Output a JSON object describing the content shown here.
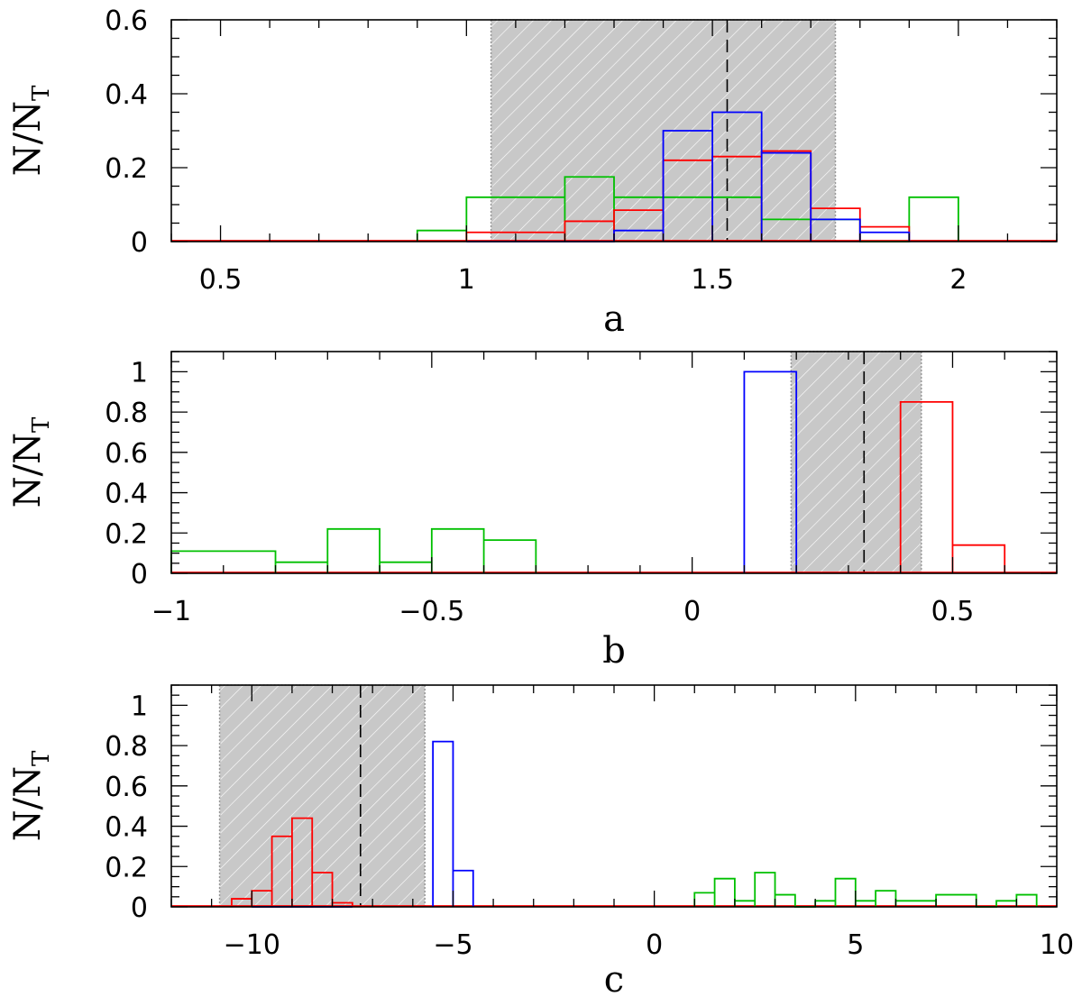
{
  "colors": {
    "blue": "#0000ff",
    "red": "#ff0000",
    "green": "#00c000",
    "band": "#c8c8c8"
  },
  "chart_data": [
    {
      "type": "histogram",
      "panel": "a",
      "xlabel": "a",
      "ylabel": "N/N",
      "ylabel_sub": "T",
      "xlim": [
        0.4,
        2.2
      ],
      "ylim": [
        0,
        0.6
      ],
      "xticks": [
        0.5,
        1,
        1.5,
        2
      ],
      "xtick_labels": [
        "0.5",
        "1",
        "1.5",
        "2"
      ],
      "yticks": [
        0,
        0.2,
        0.4,
        0.6
      ],
      "ytick_labels": [
        "0",
        "0.2",
        "0.4",
        "0.6"
      ],
      "x_minor_step": 0.1,
      "y_minor_step": 0.05,
      "shaded_range": [
        1.05,
        1.75
      ],
      "median_line": 1.53,
      "series": [
        {
          "color": "green",
          "bins": [
            [
              0.9,
              1.0,
              0.03
            ],
            [
              1.0,
              1.2,
              0.12
            ],
            [
              1.2,
              1.3,
              0.175
            ],
            [
              1.3,
              1.4,
              0.12
            ],
            [
              1.4,
              1.6,
              0.12
            ],
            [
              1.6,
              1.8,
              0.06
            ],
            [
              1.8,
              1.9,
              0.0
            ],
            [
              1.9,
              2.0,
              0.12
            ]
          ]
        },
        {
          "color": "red",
          "bins": [
            [
              1.0,
              1.2,
              0.025
            ],
            [
              1.2,
              1.3,
              0.055
            ],
            [
              1.3,
              1.4,
              0.085
            ],
            [
              1.4,
              1.5,
              0.22
            ],
            [
              1.5,
              1.6,
              0.23
            ],
            [
              1.6,
              1.7,
              0.245
            ],
            [
              1.7,
              1.8,
              0.09
            ],
            [
              1.8,
              1.9,
              0.04
            ]
          ]
        },
        {
          "color": "blue",
          "bins": [
            [
              1.0,
              1.3,
              0.0
            ],
            [
              1.3,
              1.4,
              0.03
            ],
            [
              1.4,
              1.5,
              0.3
            ],
            [
              1.5,
              1.6,
              0.35
            ],
            [
              1.6,
              1.7,
              0.24
            ],
            [
              1.7,
              1.8,
              0.06
            ],
            [
              1.8,
              1.9,
              0.025
            ]
          ]
        }
      ]
    },
    {
      "type": "histogram",
      "panel": "b",
      "xlabel": "b",
      "ylabel": "N/N",
      "ylabel_sub": "T",
      "xlim": [
        -1.0,
        0.7
      ],
      "ylim": [
        0,
        1.1
      ],
      "xticks": [
        -1,
        -0.5,
        0,
        0.5
      ],
      "xtick_labels": [
        "−1",
        "−0.5",
        "0",
        "0.5"
      ],
      "yticks": [
        0,
        0.2,
        0.4,
        0.6,
        0.8,
        1.0
      ],
      "ytick_labels": [
        "0",
        "0.2",
        "0.4",
        "0.6",
        "0.8",
        "1"
      ],
      "x_minor_step": 0.1,
      "y_minor_step": 0.05,
      "shaded_range": [
        0.19,
        0.44
      ],
      "median_line": 0.33,
      "series": [
        {
          "color": "green",
          "bins": [
            [
              -1.0,
              -0.8,
              0.11
            ],
            [
              -0.8,
              -0.7,
              0.055
            ],
            [
              -0.7,
              -0.6,
              0.22
            ],
            [
              -0.6,
              -0.5,
              0.055
            ],
            [
              -0.5,
              -0.4,
              0.22
            ],
            [
              -0.4,
              -0.3,
              0.165
            ]
          ]
        },
        {
          "color": "blue",
          "bins": [
            [
              0.1,
              0.2,
              1.0
            ]
          ]
        },
        {
          "color": "red",
          "bins": [
            [
              0.4,
              0.5,
              0.85
            ],
            [
              0.5,
              0.6,
              0.14
            ]
          ]
        }
      ]
    },
    {
      "type": "histogram",
      "panel": "c",
      "xlabel": "c",
      "ylabel": "N/N",
      "ylabel_sub": "T",
      "xlim": [
        -12.0,
        10.0
      ],
      "ylim": [
        0,
        1.1
      ],
      "xticks": [
        -10,
        -5,
        0,
        5,
        10
      ],
      "xtick_labels": [
        "−10",
        "−5",
        "0",
        "5",
        "10"
      ],
      "yticks": [
        0,
        0.2,
        0.4,
        0.6,
        0.8,
        1.0
      ],
      "ytick_labels": [
        "0",
        "0.2",
        "0.4",
        "0.6",
        "0.8",
        "1"
      ],
      "x_minor_step": 1,
      "y_minor_step": 0.05,
      "shaded_range": [
        -10.8,
        -5.7
      ],
      "median_line": -7.3,
      "series": [
        {
          "color": "red",
          "bins": [
            [
              -10.5,
              -10.0,
              0.04
            ],
            [
              -10.0,
              -9.5,
              0.08
            ],
            [
              -9.5,
              -9.0,
              0.35
            ],
            [
              -9.0,
              -8.5,
              0.44
            ],
            [
              -8.5,
              -8.0,
              0.17
            ],
            [
              -8.0,
              -7.5,
              0.02
            ]
          ]
        },
        {
          "color": "blue",
          "bins": [
            [
              -10.0,
              -7.5,
              0.0
            ],
            [
              -5.5,
              -5.0,
              0.82
            ],
            [
              -5.0,
              -4.5,
              0.18
            ]
          ]
        },
        {
          "color": "green",
          "bins": [
            [
              1.0,
              1.5,
              0.07
            ],
            [
              1.5,
              2.0,
              0.14
            ],
            [
              2.0,
              2.5,
              0.03
            ],
            [
              2.5,
              3.0,
              0.17
            ],
            [
              3.0,
              3.5,
              0.06
            ],
            [
              3.5,
              4.0,
              0.0
            ],
            [
              4.0,
              4.5,
              0.03
            ],
            [
              4.5,
              5.0,
              0.14
            ],
            [
              5.0,
              5.5,
              0.03
            ],
            [
              5.5,
              6.0,
              0.08
            ],
            [
              6.0,
              7.0,
              0.03
            ],
            [
              7.0,
              8.0,
              0.06
            ],
            [
              8.0,
              8.5,
              0.0
            ],
            [
              8.5,
              9.0,
              0.03
            ],
            [
              9.0,
              9.5,
              0.06
            ]
          ]
        }
      ]
    }
  ]
}
